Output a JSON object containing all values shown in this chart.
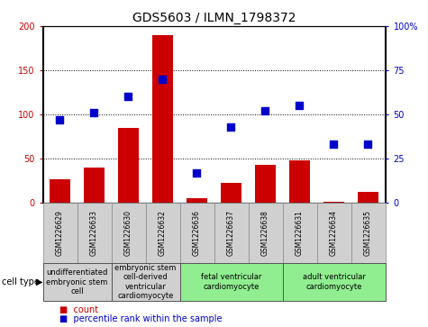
{
  "title": "GDS5603 / ILMN_1798372",
  "samples": [
    "GSM1226629",
    "GSM1226633",
    "GSM1226630",
    "GSM1226632",
    "GSM1226636",
    "GSM1226637",
    "GSM1226638",
    "GSM1226631",
    "GSM1226634",
    "GSM1226635"
  ],
  "counts": [
    27,
    40,
    85,
    190,
    5,
    22,
    43,
    48,
    1,
    12
  ],
  "percentiles": [
    47,
    51,
    60,
    70,
    17,
    43,
    52,
    55,
    33,
    33
  ],
  "count_ylim": [
    0,
    200
  ],
  "pct_ylim": [
    0,
    100
  ],
  "count_yticks": [
    0,
    50,
    100,
    150,
    200
  ],
  "pct_yticks": [
    0,
    25,
    50,
    75,
    100
  ],
  "pct_labels": [
    "0",
    "25",
    "50",
    "75",
    "100%"
  ],
  "bar_color": "#cc0000",
  "dot_color": "#0000cc",
  "sample_box_color": "#d0d0d0",
  "cell_types": [
    {
      "label": "undifferentiated\nembryonic stem\ncell",
      "start": 0,
      "end": 2,
      "color": "#d0d0d0"
    },
    {
      "label": "embryonic stem\ncell-derived\nventricular\ncardiomyocyte",
      "start": 2,
      "end": 4,
      "color": "#d0d0d0"
    },
    {
      "label": "fetal ventricular\ncardiomyocyte",
      "start": 4,
      "end": 7,
      "color": "#90ee90"
    },
    {
      "label": "adult ventricular\ncardiomyocyte",
      "start": 7,
      "end": 10,
      "color": "#90ee90"
    }
  ],
  "legend_count_label": "count",
  "legend_pct_label": "percentile rank within the sample",
  "cell_type_label": "cell type",
  "title_fontsize": 10,
  "tick_fontsize": 7,
  "sample_fontsize": 5.5,
  "ct_fontsize": 6,
  "legend_fontsize": 7
}
